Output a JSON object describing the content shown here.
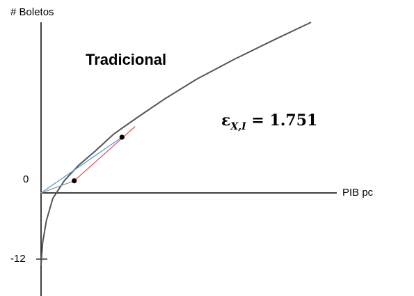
{
  "chart_data": {
    "type": "line",
    "ylabel": "# Boletos",
    "xlabel": "PIB pc",
    "y_ticks": [
      {
        "value": 0,
        "label": "0"
      },
      {
        "value": -12,
        "label": "-12"
      }
    ],
    "title": "Tradicional",
    "annotation": {
      "symbol": "ε",
      "subscript": "X,I",
      "equals": " = ",
      "value": "1.751"
    },
    "ylim": [
      -19,
      34
    ],
    "series": [
      {
        "kind": "curve",
        "color": "#555555",
        "points": [
          [
            0,
            -13
          ],
          [
            0.3,
            -9
          ],
          [
            1,
            -5
          ],
          [
            2.2,
            -1
          ],
          [
            4.4,
            2.3
          ],
          [
            7,
            5
          ],
          [
            10,
            7.5
          ],
          [
            13.6,
            10.7
          ],
          [
            18,
            13.7
          ],
          [
            23,
            17
          ],
          [
            29,
            20.6
          ],
          [
            36,
            24.2
          ],
          [
            44,
            28
          ],
          [
            50.3,
            30.9
          ]
        ]
      },
      {
        "kind": "ray-from-origin",
        "color": "#5b9bd5",
        "points": [
          [
            0,
            0
          ],
          [
            15.1,
            10.1
          ]
        ]
      },
      {
        "kind": "ray-from-origin",
        "color": "#999999",
        "points": [
          [
            0,
            0
          ],
          [
            6.2,
            2.2
          ]
        ]
      },
      {
        "kind": "tangent",
        "color": "#e05a5a",
        "points": [
          [
            6.2,
            2.2
          ],
          [
            17.5,
            12.0
          ]
        ]
      }
    ],
    "marked_points": [
      [
        6.2,
        2.2
      ],
      [
        15.1,
        10.1
      ]
    ]
  }
}
